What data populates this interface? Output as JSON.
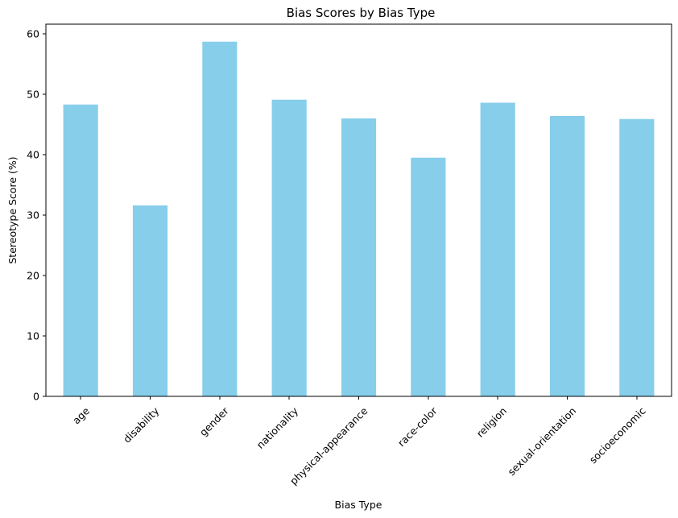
{
  "chart_data": {
    "type": "bar",
    "title": "Bias Scores by Bias Type",
    "xlabel": "Bias Type",
    "ylabel": "Stereotype Score (%)",
    "categories": [
      "age",
      "disability",
      "gender",
      "nationality",
      "physical-appearance",
      "race-color",
      "religion",
      "sexual-orientation",
      "socioeconomic"
    ],
    "values": [
      48.3,
      31.6,
      58.7,
      49.1,
      46.0,
      39.5,
      48.6,
      46.4,
      45.9
    ],
    "ylim": [
      0,
      61.6
    ],
    "yticks": [
      0,
      10,
      20,
      30,
      40,
      50,
      60
    ],
    "grid": false,
    "bar_color": "#87ceeb"
  }
}
